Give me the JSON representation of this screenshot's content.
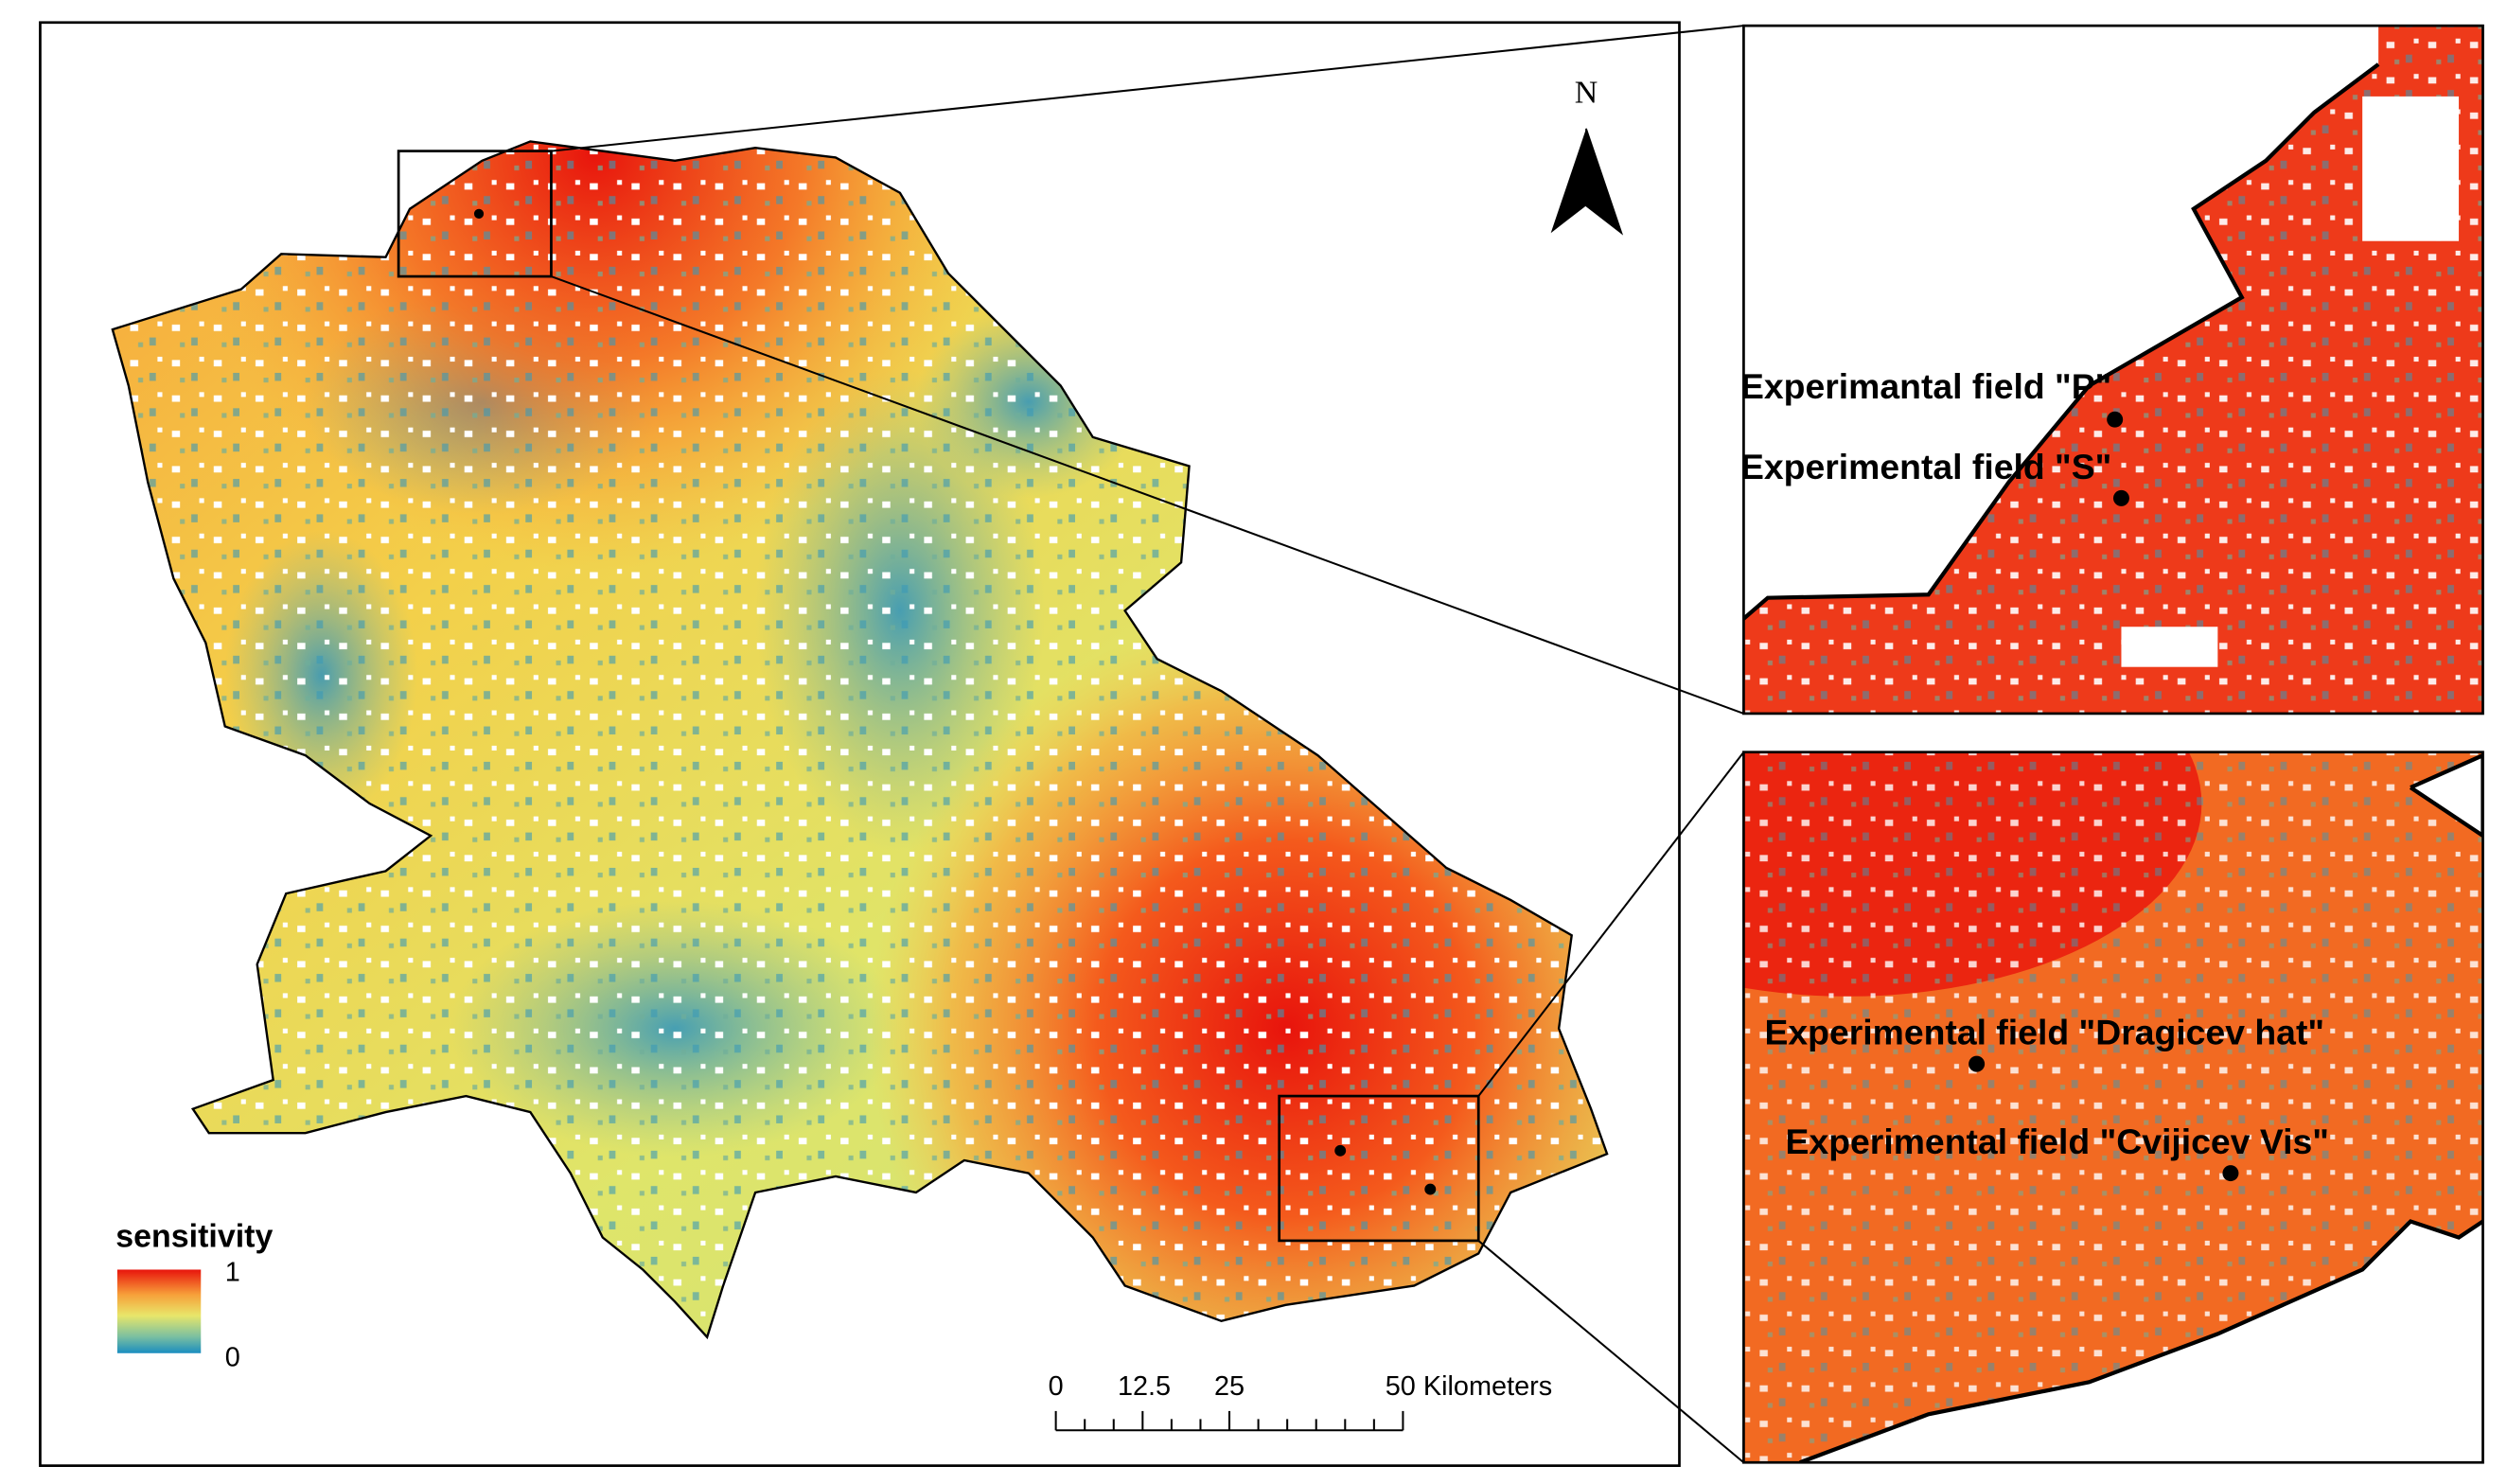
{
  "north_arrow": "N",
  "legend": {
    "title": "sensitivity",
    "max_label": "1",
    "min_label": "0"
  },
  "scale_bar": {
    "labels": [
      "0",
      "12.5",
      "25",
      "50 Kilometers"
    ]
  },
  "insets": [
    {
      "labels": [
        "Experimantal field \"P\"",
        "Experimental field \"S\""
      ]
    },
    {
      "labels": [
        "Experimental field \"Dragicev hat\"",
        "Experimental field \"Cvijicev Vis\""
      ]
    }
  ]
}
